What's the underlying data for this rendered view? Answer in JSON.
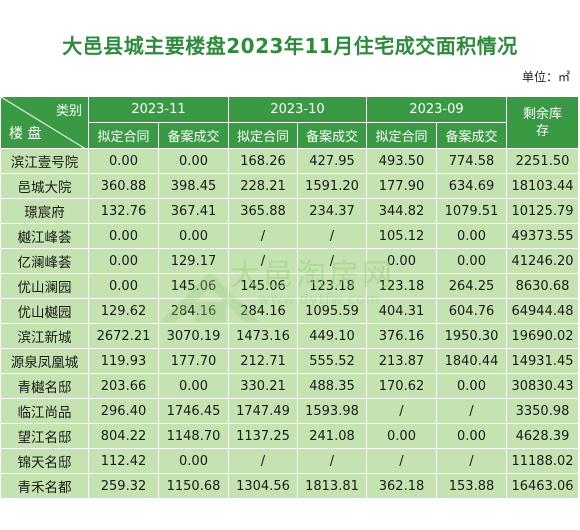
{
  "title": "大邑县城主要楼盘2023年11月住宅成交面积情况",
  "unit_label": "单位：㎡",
  "header": {
    "corner_top": "类别",
    "corner_bottom": "楼 盘",
    "months": [
      "2023-11",
      "2023-10",
      "2023-09"
    ],
    "sub": [
      "拟定合同",
      "备案成交",
      "拟定合同",
      "备案成交",
      "拟定合同",
      "备案成交"
    ],
    "remaining": "剩余库存"
  },
  "rows": [
    {
      "name": "滨江壹号院",
      "v": [
        "0.00",
        "0.00",
        "168.26",
        "427.95",
        "493.50",
        "774.58",
        "2251.50"
      ]
    },
    {
      "name": "邑城大院",
      "v": [
        "360.88",
        "398.45",
        "228.21",
        "1591.20",
        "177.90",
        "634.69",
        "18103.44"
      ]
    },
    {
      "name": "璟宸府",
      "v": [
        "132.76",
        "367.41",
        "365.88",
        "234.37",
        "344.82",
        "1079.51",
        "10125.79"
      ]
    },
    {
      "name": "樾江峰荟",
      "v": [
        "0.00",
        "0.00",
        "/",
        "/",
        "105.12",
        "0.00",
        "49373.55"
      ]
    },
    {
      "name": "亿澜峰荟",
      "v": [
        "0.00",
        "129.17",
        "/",
        "/",
        "0.00",
        "0.00",
        "41246.20"
      ]
    },
    {
      "name": "优山澜园",
      "v": [
        "0.00",
        "145.06",
        "145.06",
        "123.18",
        "123.18",
        "264.25",
        "8630.68"
      ]
    },
    {
      "name": "优山樾园",
      "v": [
        "129.62",
        "284.16",
        "284.16",
        "1095.59",
        "404.31",
        "604.76",
        "64944.48"
      ]
    },
    {
      "name": "滨江新城",
      "v": [
        "2672.21",
        "3070.19",
        "1473.16",
        "449.10",
        "376.16",
        "1950.30",
        "19690.02"
      ]
    },
    {
      "name": "源泉凤凰城",
      "v": [
        "119.93",
        "177.70",
        "212.71",
        "555.52",
        "213.87",
        "1840.44",
        "14931.45"
      ]
    },
    {
      "name": "青樾名邸",
      "v": [
        "203.66",
        "0.00",
        "330.21",
        "488.35",
        "170.62",
        "0.00",
        "30830.43"
      ]
    },
    {
      "name": "临江尚品",
      "v": [
        "296.40",
        "1746.45",
        "1747.49",
        "1593.98",
        "/",
        "/",
        "3350.98"
      ]
    },
    {
      "name": "望江名邸",
      "v": [
        "804.22",
        "1148.70",
        "1137.25",
        "241.08",
        "0.00",
        "0.00",
        "4628.39"
      ]
    },
    {
      "name": "锦天名邸",
      "v": [
        "112.42",
        "0.00",
        "/",
        "/",
        "/",
        "/",
        "11188.02"
      ]
    },
    {
      "name": "青禾名都",
      "v": [
        "259.32",
        "1150.68",
        "1304.56",
        "1813.81",
        "362.18",
        "153.88",
        "16463.06"
      ]
    }
  ],
  "watermark": {
    "text": "大邑淘房网",
    "url": "www.dytfw.com"
  },
  "colors": {
    "header_bg": "#3a9a44",
    "body_bg": "#c5e3b0",
    "title": "#2e8b3c"
  }
}
